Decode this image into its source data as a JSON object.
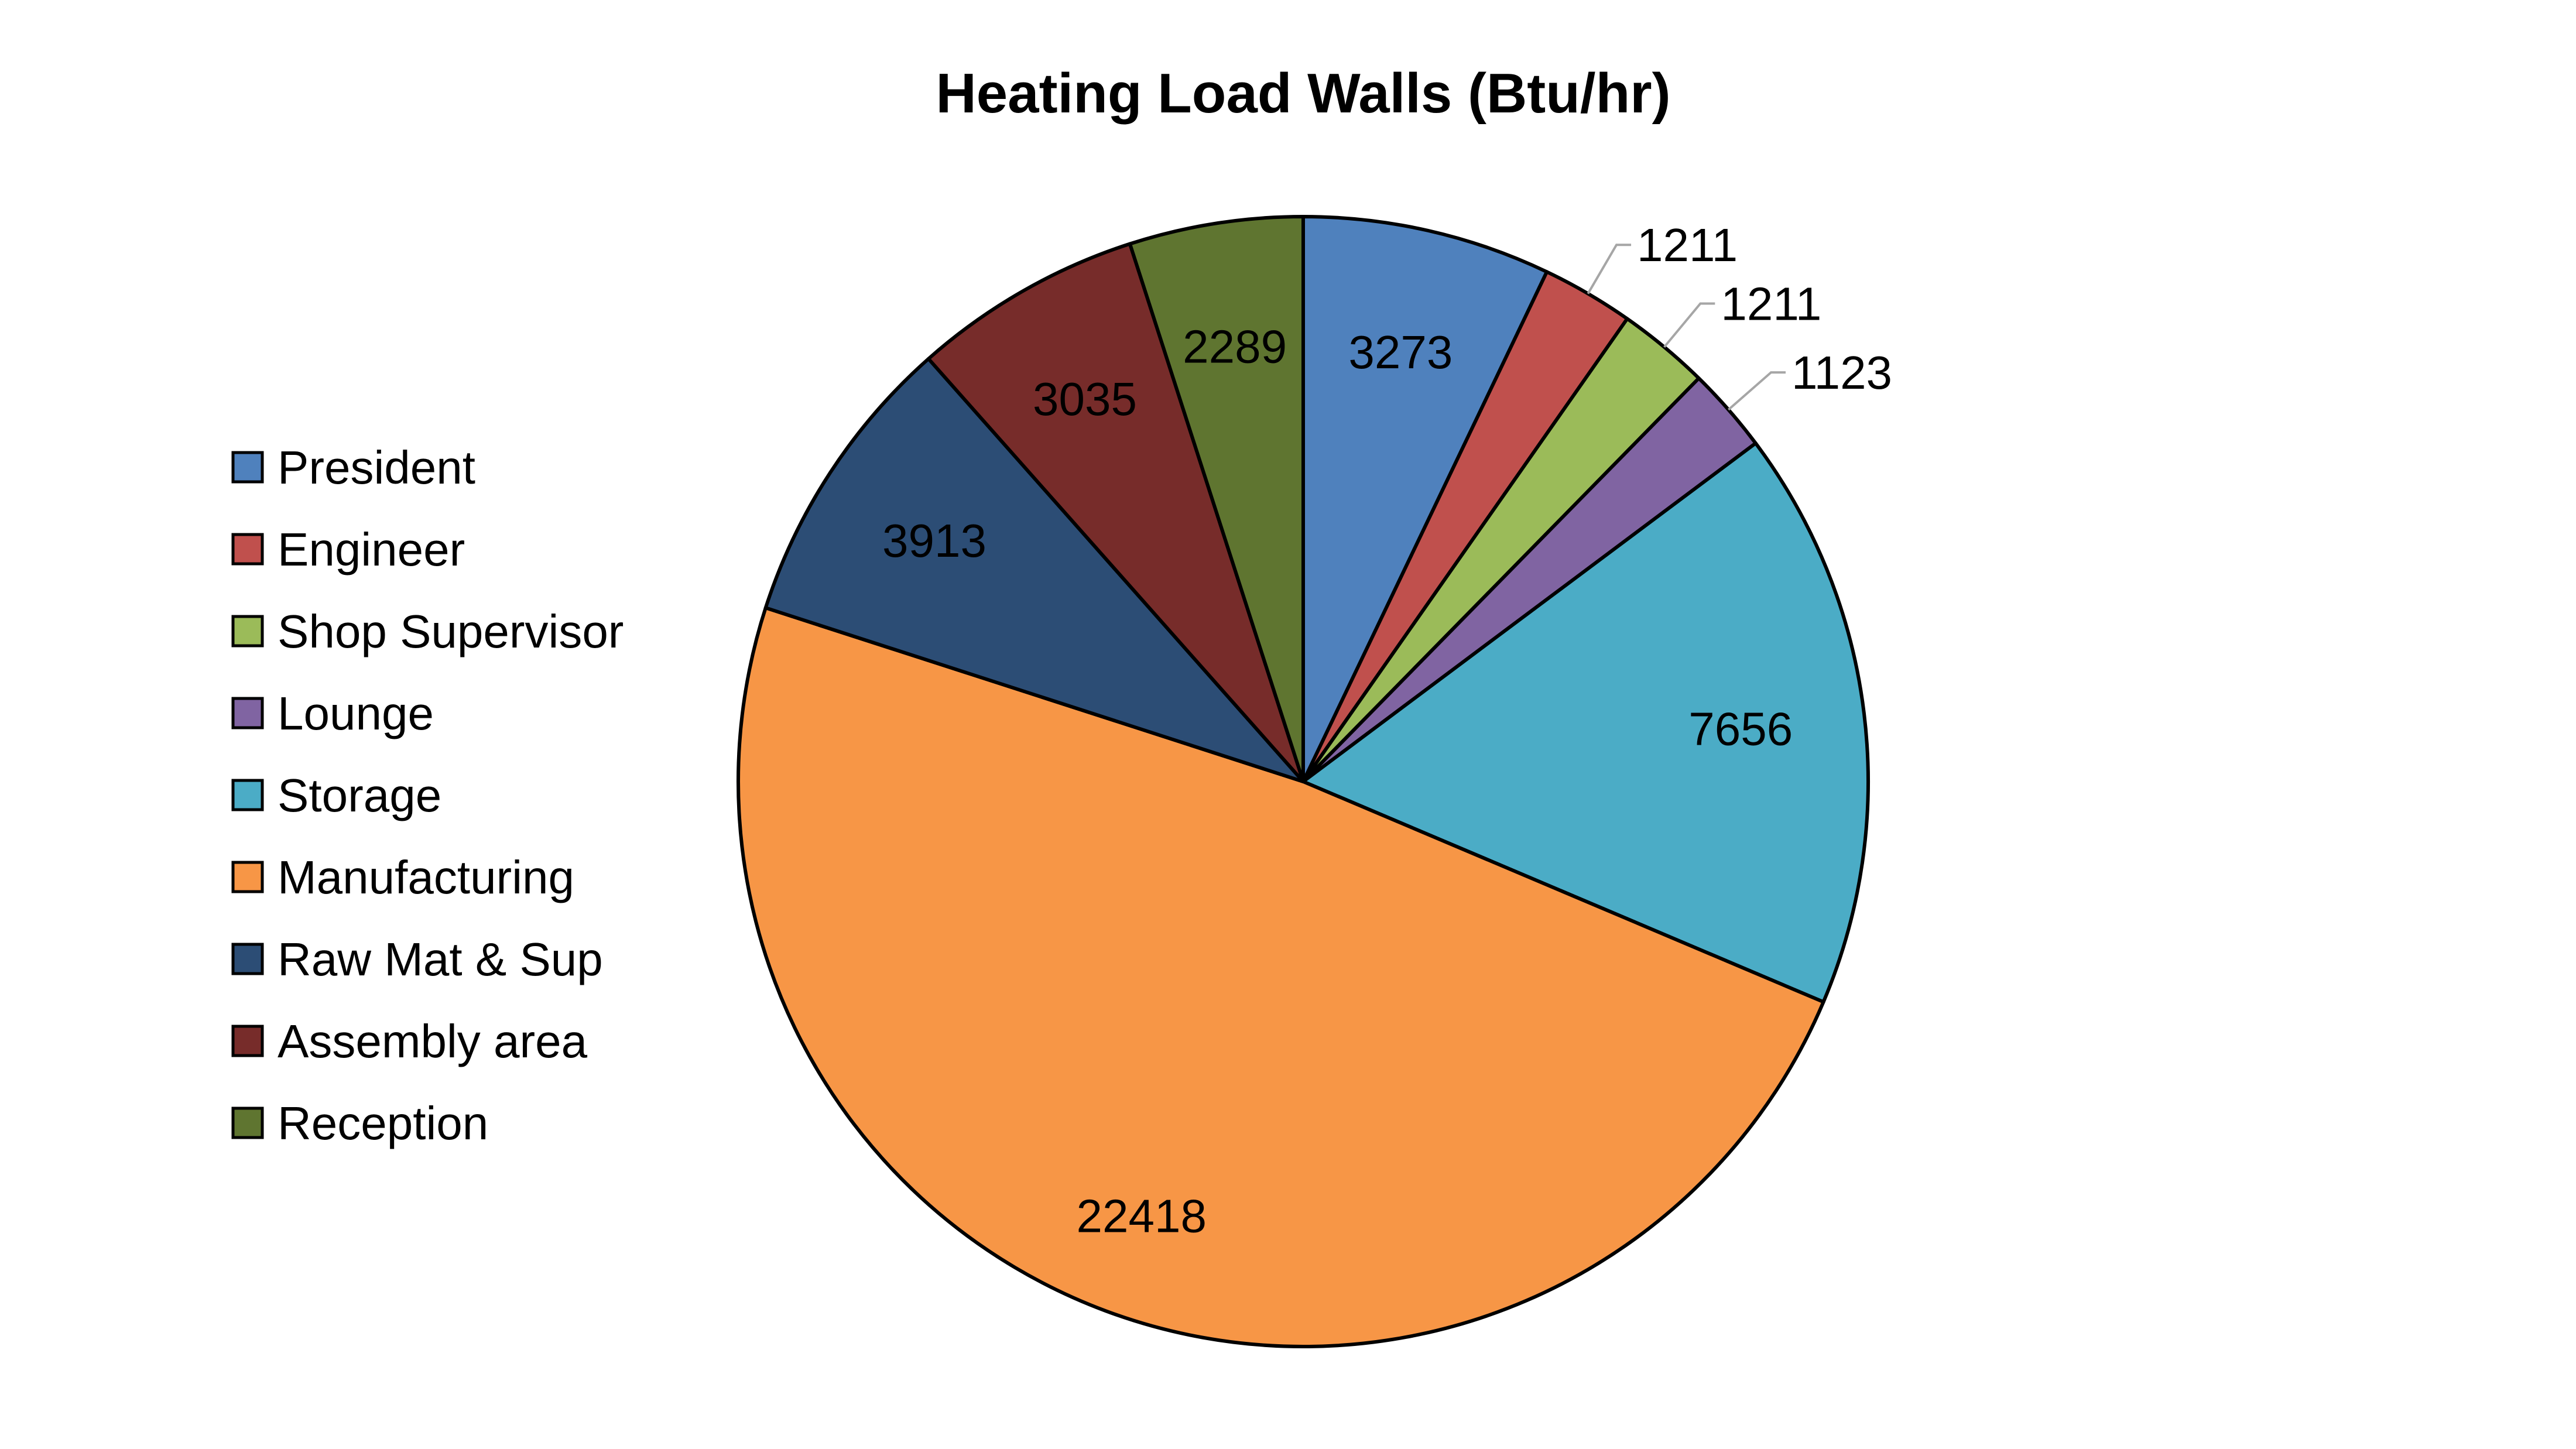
{
  "chart_data": {
    "type": "pie",
    "title": "Heating Load Walls (Btu/hr)",
    "start": "top",
    "direction": "clockwise",
    "legend_position": "left",
    "slices": [
      {
        "label": "President",
        "value": 3273,
        "color": "#4F81BD",
        "label_outside": false
      },
      {
        "label": "Engineer",
        "value": 1211,
        "color": "#C0504D",
        "label_outside": true
      },
      {
        "label": "Shop Supervisor",
        "value": 1211,
        "color": "#9BBB59",
        "label_outside": true
      },
      {
        "label": "Lounge",
        "value": 1123,
        "color": "#8064A2",
        "label_outside": true
      },
      {
        "label": "Storage",
        "value": 7656,
        "color": "#4BACC6",
        "label_outside": false
      },
      {
        "label": "Manufacturing",
        "value": 22418,
        "color": "#F79646",
        "label_outside": false
      },
      {
        "label": "Raw Mat & Sup",
        "value": 3913,
        "color": "#2C4D75",
        "label_outside": false
      },
      {
        "label": "Assembly area",
        "value": 3035,
        "color": "#772C2A",
        "label_outside": false
      },
      {
        "label": "Reception",
        "value": 2289,
        "color": "#5F7530",
        "label_outside": false
      }
    ]
  }
}
